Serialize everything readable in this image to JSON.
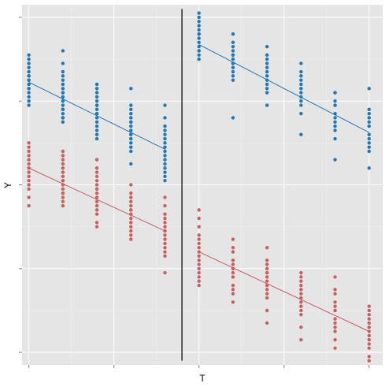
{
  "chart_data": {
    "type": "scatter",
    "title": "",
    "xlabel": "T",
    "ylabel": "Y",
    "xlim": [
      -0.2,
      10.4
    ],
    "ylim": [
      -4.3,
      4.3
    ],
    "x_ticks": [
      0,
      2.5,
      5,
      7.5,
      10
    ],
    "y_ticks": [
      -4,
      -2,
      0,
      2,
      4
    ],
    "show_tick_labels": false,
    "grid": true,
    "legend": "none",
    "cutoff": {
      "x": 4.5,
      "y_from": -4.2,
      "y_to": 4.2,
      "color": "#000000"
    },
    "series": [
      {
        "color": "#1f78b4",
        "points": [
          {
            "x": 0,
            "values": [
              2.5,
              2.1,
              2.8,
              3.1,
              2.3,
              2.6,
              2.2,
              2.9,
              2.4,
              3.0,
              2.0,
              2.5,
              2.7,
              1.9,
              2.3,
              2.6
            ]
          },
          {
            "x": 1,
            "values": [
              2.2,
              1.8,
              2.5,
              2.9,
              1.6,
              2.0,
              2.4,
              1.5,
              2.7,
              3.2,
              1.9,
              2.1,
              2.6,
              1.7,
              2.3,
              2.0,
              1.8,
              2.4,
              2.2,
              1.6
            ]
          },
          {
            "x": 2,
            "values": [
              1.9,
              1.5,
              2.2,
              2.4,
              1.3,
              1.7,
              2.0,
              1.2,
              1.8,
              2.3,
              1.6,
              1.4,
              2.1,
              1.9,
              1.1,
              1.7
            ]
          },
          {
            "x": 3,
            "values": [
              1.5,
              1.1,
              1.8,
              2.3,
              0.9,
              1.3,
              1.6,
              0.5,
              1.2,
              1.9,
              1.4,
              1.0,
              1.7,
              0.8,
              1.5,
              1.2
            ]
          },
          {
            "x": 4,
            "values": [
              1.0,
              0.6,
              1.4,
              1.9,
              0.3,
              0.8,
              1.2,
              0.1,
              0.7,
              1.6,
              0.9,
              0.4,
              1.1,
              0.5,
              1.3,
              0.2
            ]
          },
          {
            "x": 5,
            "values": [
              3.4,
              3.0,
              3.8,
              4.1,
              3.2,
              3.6,
              3.9,
              3.1,
              3.5,
              3.7,
              3.3,
              4.0,
              3.2,
              3.6
            ]
          },
          {
            "x": 6,
            "values": [
              3.1,
              2.7,
              3.4,
              3.6,
              2.6,
              2.9,
              3.2,
              1.6,
              2.8,
              3.3,
              3.0,
              2.5,
              3.1,
              2.9
            ]
          },
          {
            "x": 7,
            "values": [
              2.8,
              2.4,
              3.0,
              3.3,
              2.2,
              2.5,
              2.9,
              1.9,
              2.6,
              3.1,
              2.7,
              2.3
            ]
          },
          {
            "x": 8,
            "values": [
              2.4,
              2.0,
              2.7,
              2.9,
              1.7,
              2.2,
              2.5,
              1.2,
              2.1,
              2.6,
              1.9,
              2.3
            ]
          },
          {
            "x": 9,
            "values": [
              1.9,
              1.5,
              2.2,
              2.2,
              1.3,
              1.6,
              1.9,
              0.6,
              1.4,
              2.0,
              1.7,
              1.1
            ]
          },
          {
            "x": 10,
            "values": [
              1.5,
              1.1,
              1.8,
              2.3,
              0.8,
              1.2,
              1.6,
              0.4,
              1.0,
              1.4,
              1.7,
              0.9
            ]
          }
        ],
        "lines": [
          {
            "x": [
              0,
              4
            ],
            "y": [
              2.45,
              0.85
            ]
          },
          {
            "x": [
              5,
              10
            ],
            "y": [
              3.35,
              1.25
            ]
          }
        ]
      },
      {
        "color": "#c7605f",
        "points": [
          {
            "x": 0,
            "values": [
              0.4,
              0.0,
              0.8,
              1.0,
              -0.3,
              0.2,
              0.6,
              -0.5,
              0.3,
              0.9,
              0.1,
              0.5,
              -0.1,
              0.7,
              0.4
            ]
          },
          {
            "x": 1,
            "values": [
              0.1,
              -0.3,
              0.5,
              0.8,
              -0.5,
              -0.1,
              0.3,
              0.6,
              -0.2,
              0.2,
              0.4,
              0.0,
              -0.4,
              0.7,
              0.1,
              -0.2
            ]
          },
          {
            "x": 2,
            "values": [
              -0.2,
              -0.6,
              0.2,
              0.6,
              -0.9,
              -0.4,
              0.0,
              0.4,
              -0.7,
              -0.1,
              0.3,
              -0.3,
              -1.0,
              0.1,
              -0.5
            ]
          },
          {
            "x": 3,
            "values": [
              -0.6,
              -1.0,
              -0.2,
              0.0,
              -1.2,
              -0.8,
              -0.4,
              -1.3,
              -0.7,
              -0.3,
              -0.9,
              -0.5,
              -1.1,
              -0.6
            ]
          },
          {
            "x": 4,
            "values": [
              -1.1,
              -1.5,
              -0.7,
              -0.3,
              -1.7,
              -1.3,
              -0.9,
              -2.1,
              -1.2,
              -0.8,
              -1.4,
              -1.0,
              -1.6,
              -1.1,
              -0.5
            ]
          },
          {
            "x": 5,
            "values": [
              -1.6,
              -2.0,
              -1.2,
              -0.6,
              -2.4,
              -1.8,
              -1.4,
              -1.0,
              -2.2,
              -1.5,
              -1.9,
              -1.3,
              -2.1,
              -0.8,
              -1.7,
              -2.3
            ]
          },
          {
            "x": 6,
            "values": [
              -2.0,
              -2.4,
              -1.6,
              -1.3,
              -2.6,
              -2.2,
              -1.8,
              -2.8,
              -2.1,
              -1.9,
              -1.5,
              -2.5,
              -2.0
            ]
          },
          {
            "x": 7,
            "values": [
              -2.3,
              -2.7,
              -1.9,
              -1.5,
              -3.0,
              -2.5,
              -2.1,
              -3.3,
              -2.2,
              -1.8,
              -2.6,
              -2.0,
              -2.4
            ]
          },
          {
            "x": 8,
            "values": [
              -2.7,
              -3.1,
              -2.3,
              -2.1,
              -3.4,
              -2.9,
              -2.5,
              -3.7,
              -2.6,
              -2.2,
              -3.0,
              -2.4,
              -2.8
            ]
          },
          {
            "x": 9,
            "values": [
              -3.0,
              -3.4,
              -2.6,
              -2.2,
              -3.7,
              -3.2,
              -2.8,
              -3.9,
              -3.0,
              -2.5,
              -3.3,
              -2.9,
              -3.5
            ]
          },
          {
            "x": 10,
            "values": [
              -3.5,
              -3.8,
              -3.1,
              -2.9,
              -4.1,
              -3.6,
              -3.3,
              -4.2,
              -3.4,
              -3.0,
              -3.7,
              -3.2,
              -3.9
            ]
          }
        ],
        "lines": [
          {
            "x": [
              0,
              4
            ],
            "y": [
              0.4,
              -1.1
            ]
          },
          {
            "x": [
              5,
              10
            ],
            "y": [
              -1.6,
              -3.5
            ]
          }
        ]
      }
    ]
  }
}
